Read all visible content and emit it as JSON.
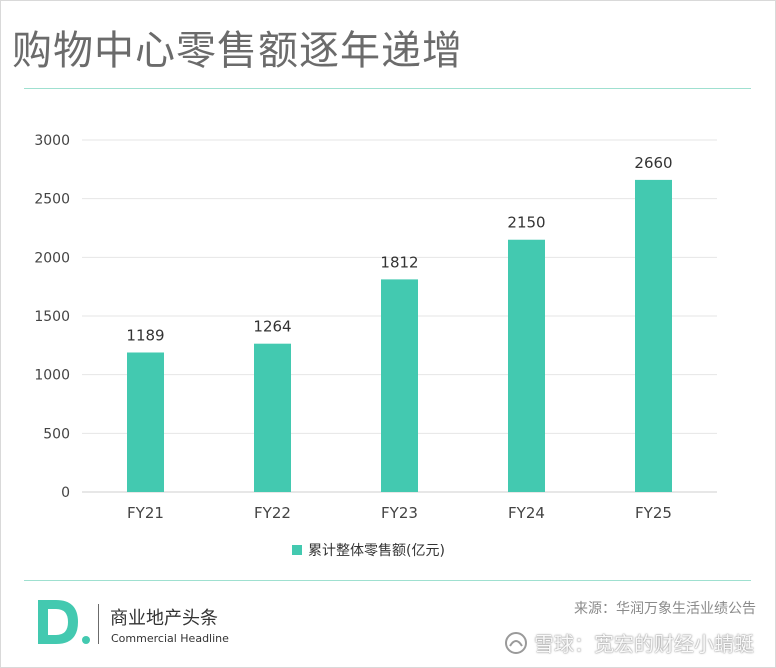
{
  "title": "购物中心零售额逐年递增",
  "brand": {
    "name_cn": "商业地产头条",
    "name_en": "Commercial Headline",
    "logo_letter": "D."
  },
  "source": "来源：华润万象生活业绩公告",
  "watermark": {
    "text": "雪球：宽宏的财经小蜻蜓"
  },
  "colors": {
    "bar": "#43c9b0",
    "accent_line": "#9fe0d0",
    "title": "#6b6b6b"
  },
  "chart_data": {
    "type": "bar",
    "title": "",
    "xlabel": "",
    "ylabel": "",
    "categories": [
      "FY21",
      "FY22",
      "FY23",
      "FY24",
      "FY25"
    ],
    "series": [
      {
        "name": "累计整体零售额(亿元)",
        "values": [
          1189,
          1264,
          1812,
          2150,
          2660
        ]
      }
    ],
    "ylim": [
      0,
      3000
    ],
    "yticks": [
      0,
      500,
      1000,
      1500,
      2000,
      2500,
      3000
    ],
    "data_labels": [
      "1189",
      "1264",
      "1812",
      "2150",
      "2660"
    ],
    "grid": true,
    "legend_position": "bottom"
  }
}
